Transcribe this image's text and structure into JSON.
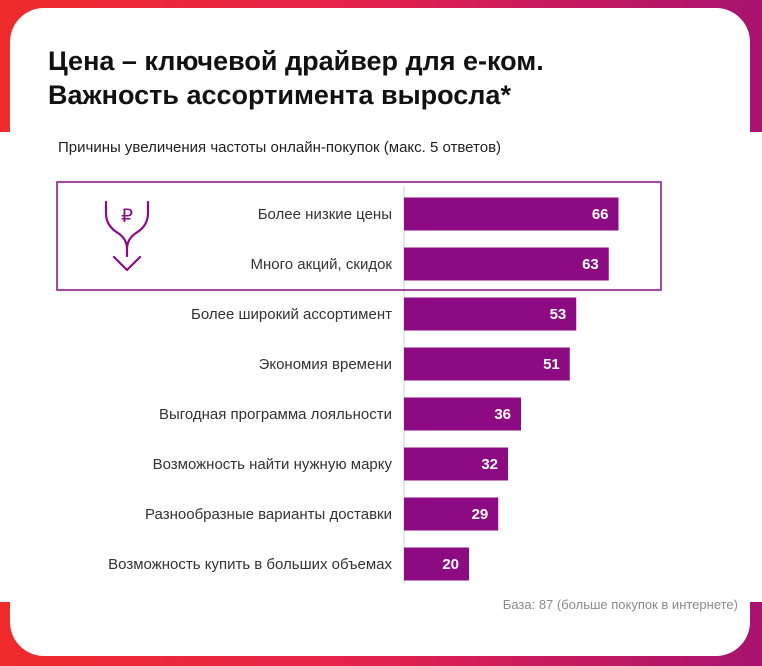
{
  "title_line1": "Цена – ключевой драйвер для е-ком.",
  "title_line2": "Важность ассортимента выросла*",
  "subtitle": "Причины увеличения частоты онлайн-покупок (макс. 5 ответов)",
  "footnote": "База: 87 (больше покупок в интернете)",
  "colors": {
    "bar": "#8c0b82",
    "highlight_box": "#8c0b82",
    "accent_red": "#ef2b2b",
    "accent_magenta": "#a8136f"
  },
  "icons": {
    "price_down": "ruble-down-arrow-icon",
    "ruble_symbol": "₽"
  },
  "chart_data": {
    "type": "bar",
    "orientation": "horizontal",
    "title": "Причины увеличения частоты онлайн-покупок (макс. 5 ответов)",
    "categories": [
      "Более низкие цены",
      "Много акций, скидок",
      "Более широкий ассортимент",
      "Экономия времени",
      "Выгодная программа лояльности",
      "Возможность найти нужную марку",
      "Разнообразные варианты доставки",
      "Возможность купить в больших объемах"
    ],
    "values": [
      66,
      63,
      53,
      51,
      36,
      32,
      29,
      20
    ],
    "highlighted_categories": [
      "Более низкие цены",
      "Много акций, скидок"
    ],
    "xlim": [
      0,
      100
    ],
    "grid": false,
    "legend": "none"
  }
}
